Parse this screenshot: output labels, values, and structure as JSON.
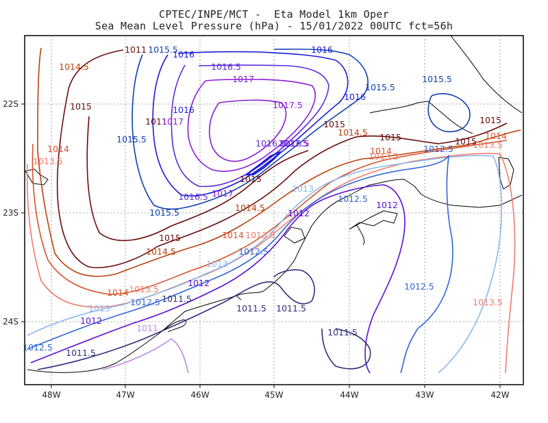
{
  "title": {
    "line1": "CPTEC/INPE/MCT -  Eta Model 1km Oper",
    "line2": "Sea Mean Level Pressure (hPa) - 15/01/2022 00UTC fct=56h"
  },
  "axes": {
    "x_ticks": [
      "48W",
      "47W",
      "46W",
      "45W",
      "44W",
      "43W",
      "42W"
    ],
    "y_ticks": [
      "22S",
      "23S",
      "24S"
    ],
    "grid": "dotted"
  },
  "colors": {
    "c1011": "#1a1a5e",
    "c1011_5": "#2d2d7a",
    "c1012": "#5a0ad6",
    "c1012_5": "#2e64d8",
    "c1013": "#8ab8f0",
    "c1013_5": "#f07a6a",
    "c1014": "#d8502a",
    "c1014_5": "#b8400a",
    "c1015": "#6a0a0a",
    "c1015_5": "#0b3fae",
    "c1016": "#1a1ad8",
    "c1016_5": "#5a2ad8",
    "c1017": "#8a1ad8",
    "c1017_5": "#8a1ad8",
    "c1011lav": "#c08ae8",
    "coast": "#000000"
  },
  "contour_labels": [
    {
      "text": "1014.5",
      "color": "#b8400a"
    },
    {
      "text": "1015",
      "color": "#6a0a0a"
    },
    {
      "text": "1014",
      "color": "#d8502a"
    },
    {
      "text": "1013.5",
      "color": "#f07a6a"
    },
    {
      "text": "1011",
      "color": "#6a0a0a"
    },
    {
      "text": "1015.5",
      "color": "#0b3fae"
    },
    {
      "text": "1016",
      "color": "#1a1ad8"
    },
    {
      "text": "1016.5",
      "color": "#5a2ad8"
    },
    {
      "text": "1017",
      "color": "#8a1ad8"
    },
    {
      "text": "1017.5",
      "color": "#8a1ad8"
    },
    {
      "text": "1016",
      "color": "#1a1ad8"
    },
    {
      "text": "1015.5",
      "color": "#0b3fae"
    },
    {
      "text": "1015.5",
      "color": "#0b3fae"
    },
    {
      "text": "1016",
      "color": "#1a1ad8"
    },
    {
      "text": "1015",
      "color": "#6a0a0a"
    },
    {
      "text": "1014.5",
      "color": "#b8400a"
    },
    {
      "text": "1015",
      "color": "#6a0a0a"
    },
    {
      "text": "1014",
      "color": "#d8502a"
    },
    {
      "text": "1013.5",
      "color": "#f07a6a"
    },
    {
      "text": "1012.5",
      "color": "#2e64d8"
    },
    {
      "text": "1015",
      "color": "#6a0a0a"
    },
    {
      "text": "1014",
      "color": "#d8502a"
    },
    {
      "text": "1013.5",
      "color": "#f07a6a"
    },
    {
      "text": "1015",
      "color": "#6a0a0a"
    },
    {
      "text": "1011",
      "color": "#6a0a0a"
    },
    {
      "text": "1017",
      "color": "#8a1ad8"
    },
    {
      "text": "1015.5",
      "color": "#0b3fae"
    },
    {
      "text": "1016.5",
      "color": "#5a2ad8"
    },
    {
      "text": "1017",
      "color": "#8a1ad8"
    },
    {
      "text": "1016.5",
      "color": "#5a2ad8"
    },
    {
      "text": "1017.5",
      "color": "#8a1ad8"
    },
    {
      "text": "1016.5",
      "color": "#5a2ad8"
    },
    {
      "text": "1015",
      "color": "#6a0a0a"
    },
    {
      "text": "1016",
      "color": "#1a1ad8"
    },
    {
      "text": "1015.5",
      "color": "#0b3fae"
    },
    {
      "text": "1014.5",
      "color": "#b8400a"
    },
    {
      "text": "1013",
      "color": "#8ab8f0"
    },
    {
      "text": "1012.5",
      "color": "#2e64d8"
    },
    {
      "text": "1012",
      "color": "#5a0ad6"
    },
    {
      "text": "1012",
      "color": "#5a0ad6"
    },
    {
      "text": "1015",
      "color": "#6a0a0a"
    },
    {
      "text": "1014",
      "color": "#d8502a"
    },
    {
      "text": "1013.5",
      "color": "#f07a6a"
    },
    {
      "text": "1014.5",
      "color": "#b8400a"
    },
    {
      "text": "1012.5",
      "color": "#2e64d8"
    },
    {
      "text": "1013",
      "color": "#8ab8f0"
    },
    {
      "text": "1012",
      "color": "#5a0ad6"
    },
    {
      "text": "1014",
      "color": "#d8502a"
    },
    {
      "text": "1013.5",
      "color": "#f07a6a"
    },
    {
      "text": "1012.5",
      "color": "#2e64d8"
    },
    {
      "text": "1011.5",
      "color": "#2d2d7a"
    },
    {
      "text": "1013",
      "color": "#8ab8f0"
    },
    {
      "text": "1012",
      "color": "#5a0ad6"
    },
    {
      "text": "1011",
      "color": "#c08ae8"
    },
    {
      "text": "1011.5",
      "color": "#2d2d7a"
    },
    {
      "text": "1011.5",
      "color": "#2d2d7a"
    },
    {
      "text": "1011.5",
      "color": "#2d2d7a"
    },
    {
      "text": "1012.5",
      "color": "#2e64d8"
    },
    {
      "text": "1011.5",
      "color": "#2d2d7a"
    },
    {
      "text": "1012.5",
      "color": "#2e64d8"
    },
    {
      "text": "1013.5",
      "color": "#f07a6a"
    }
  ]
}
